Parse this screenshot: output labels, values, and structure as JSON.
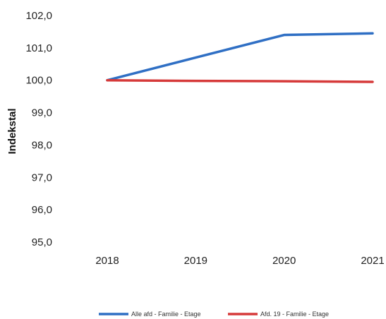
{
  "chart_data": {
    "type": "line",
    "title": "",
    "xlabel": "",
    "ylabel": "Indekstal",
    "x": [
      "2018",
      "2019",
      "2020",
      "2021"
    ],
    "ylim": [
      95.0,
      102.0
    ],
    "yticks": [
      "95,0",
      "96,0",
      "97,0",
      "98,0",
      "99,0",
      "100,0",
      "101,0",
      "102,0"
    ],
    "grid": false,
    "legend_position": "bottom",
    "series": [
      {
        "name": "Alle afd - Familie - Etage",
        "values": [
          100.0,
          100.7,
          101.4,
          101.45
        ],
        "color": "#2f6fc4"
      },
      {
        "name": "Afd. 19 - Familie - Etage",
        "values": [
          100.0,
          99.98,
          99.97,
          99.95
        ],
        "color": "#d63a3a"
      }
    ]
  }
}
